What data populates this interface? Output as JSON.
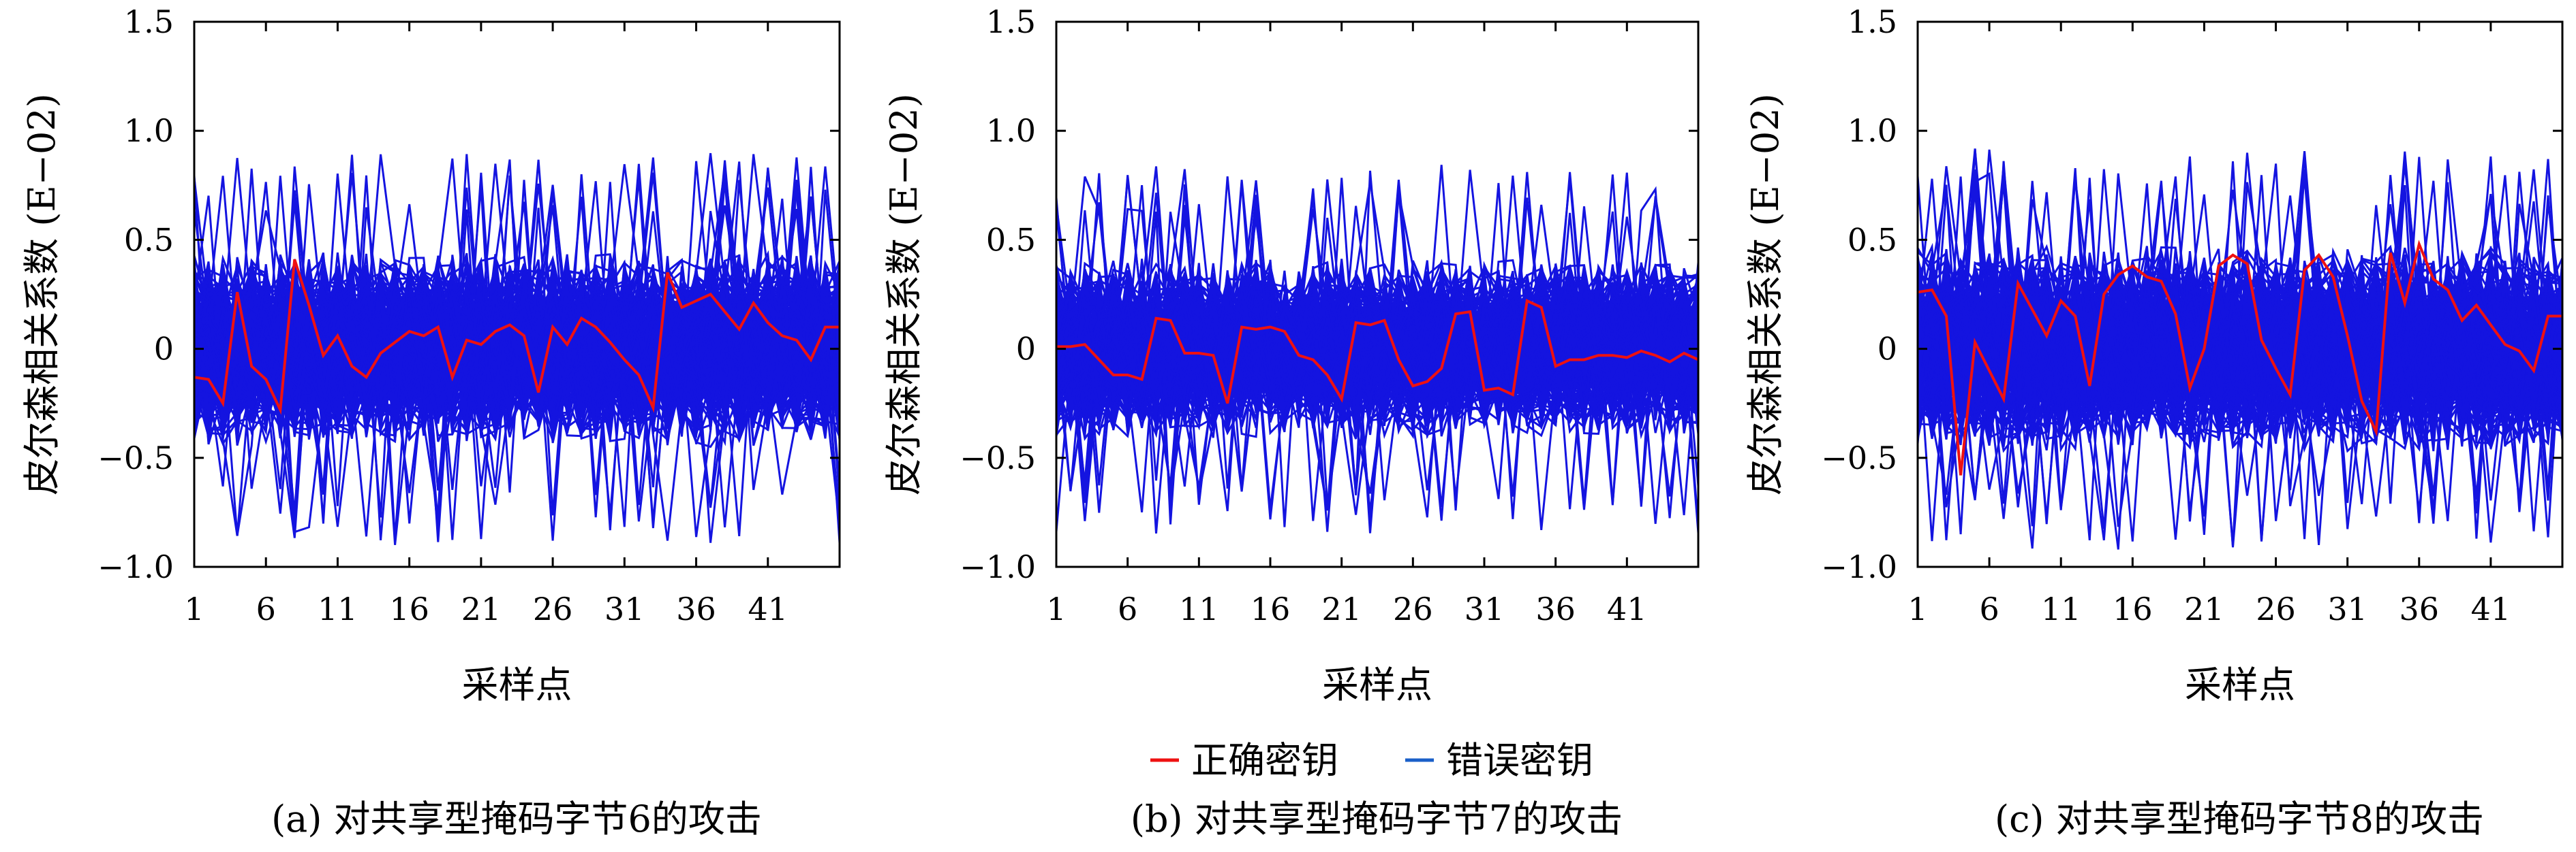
{
  "colors": {
    "correct": "#ee1111",
    "wrong": "#1414e0",
    "wrong_legend": "#1a5fc8",
    "axis": "#000000",
    "background": "#ffffff"
  },
  "legend": {
    "correct_label": "正确密钥",
    "wrong_label": "错误密钥",
    "placement": "bottom-center"
  },
  "chart_data": [
    {
      "type": "line",
      "caption": "(a) 对共享型掩码字节6的攻击",
      "xlabel": "采样点",
      "ylabel": "皮尔森相关系数 (E−02)",
      "xlim": [
        1,
        46
      ],
      "ylim": [
        -1.0,
        1.5
      ],
      "xticks": [
        "1",
        "6",
        "11",
        "16",
        "21",
        "26",
        "31",
        "36",
        "41"
      ],
      "yticks": [
        "−1.0",
        "−0.5",
        "0",
        "0.5",
        "1.0",
        "1.5"
      ],
      "grid": false,
      "wrong_key_band": {
        "typical_amplitude": 0.45,
        "peak_amplitude": 0.9,
        "count": 255
      },
      "series": [
        {
          "name": "正确密钥",
          "x": [
            1,
            2,
            3,
            4,
            5,
            6,
            7,
            8,
            9,
            10,
            11,
            12,
            13,
            14,
            15,
            16,
            17,
            18,
            19,
            20,
            21,
            22,
            23,
            24,
            25,
            26,
            27,
            28,
            29,
            30,
            31,
            32,
            33,
            34,
            35,
            36,
            37,
            38,
            39,
            40,
            41,
            42,
            43,
            44,
            45,
            46
          ],
          "values": [
            -0.13,
            -0.14,
            -0.25,
            0.26,
            -0.08,
            -0.14,
            -0.28,
            0.41,
            0.2,
            -0.03,
            0.06,
            -0.08,
            -0.13,
            -0.02,
            0.03,
            0.08,
            0.06,
            0.1,
            -0.13,
            0.04,
            0.02,
            0.08,
            0.11,
            0.06,
            -0.2,
            0.1,
            0.02,
            0.14,
            0.1,
            0.03,
            -0.05,
            -0.12,
            -0.27,
            0.35,
            0.19,
            0.22,
            0.25,
            0.17,
            0.09,
            0.21,
            0.12,
            0.06,
            0.04,
            -0.05,
            0.1,
            0.1
          ]
        }
      ]
    },
    {
      "type": "line",
      "caption": "(b) 对共享型掩码字节7的攻击",
      "xlabel": "采样点",
      "ylabel": "皮尔森相关系数 (E−02)",
      "xlim": [
        1,
        46
      ],
      "ylim": [
        -1.0,
        1.5
      ],
      "xticks": [
        "1",
        "6",
        "11",
        "16",
        "21",
        "26",
        "31",
        "36",
        "41"
      ],
      "yticks": [
        "−1.0",
        "−0.5",
        "0",
        "0.5",
        "1.0",
        "1.5"
      ],
      "grid": false,
      "wrong_key_band": {
        "typical_amplitude": 0.42,
        "peak_amplitude": 0.85,
        "count": 255
      },
      "series": [
        {
          "name": "正确密钥",
          "x": [
            1,
            2,
            3,
            4,
            5,
            6,
            7,
            8,
            9,
            10,
            11,
            12,
            13,
            14,
            15,
            16,
            17,
            18,
            19,
            20,
            21,
            22,
            23,
            24,
            25,
            26,
            27,
            28,
            29,
            30,
            31,
            32,
            33,
            34,
            35,
            36,
            37,
            38,
            39,
            40,
            41,
            42,
            43,
            44,
            45,
            46
          ],
          "values": [
            0.01,
            0.01,
            0.02,
            -0.05,
            -0.12,
            -0.12,
            -0.14,
            0.14,
            0.13,
            -0.02,
            -0.02,
            -0.03,
            -0.25,
            0.1,
            0.09,
            0.1,
            0.08,
            -0.03,
            -0.05,
            -0.12,
            -0.23,
            0.12,
            0.11,
            0.13,
            -0.05,
            -0.17,
            -0.15,
            -0.09,
            0.16,
            0.17,
            -0.19,
            -0.18,
            -0.21,
            0.22,
            0.19,
            -0.08,
            -0.05,
            -0.05,
            -0.03,
            -0.03,
            -0.04,
            -0.01,
            -0.03,
            -0.06,
            -0.02,
            -0.05
          ]
        }
      ]
    },
    {
      "type": "line",
      "caption": "(c) 对共享型掩码字节8的攻击",
      "xlabel": "采样点",
      "ylabel": "皮尔森相关系数 (E−02)",
      "xlim": [
        1,
        46
      ],
      "ylim": [
        -1.0,
        1.5
      ],
      "xticks": [
        "1",
        "6",
        "11",
        "16",
        "21",
        "26",
        "31",
        "36",
        "41"
      ],
      "yticks": [
        "−1.0",
        "−0.5",
        "0",
        "0.5",
        "1.0",
        "1.5"
      ],
      "grid": false,
      "wrong_key_band": {
        "typical_amplitude": 0.48,
        "peak_amplitude": 0.92,
        "count": 255
      },
      "series": [
        {
          "name": "正确密钥",
          "x": [
            1,
            2,
            3,
            4,
            5,
            6,
            7,
            8,
            9,
            10,
            11,
            12,
            13,
            14,
            15,
            16,
            17,
            18,
            19,
            20,
            21,
            22,
            23,
            24,
            25,
            26,
            27,
            28,
            29,
            30,
            31,
            32,
            33,
            34,
            35,
            36,
            37,
            38,
            39,
            40,
            41,
            42,
            43,
            44,
            45,
            46
          ],
          "values": [
            0.26,
            0.27,
            0.15,
            -0.58,
            0.03,
            -0.1,
            -0.23,
            0.3,
            0.18,
            0.06,
            0.22,
            0.15,
            -0.17,
            0.25,
            0.34,
            0.38,
            0.33,
            0.31,
            0.16,
            -0.18,
            0.0,
            0.38,
            0.43,
            0.39,
            0.04,
            -0.09,
            -0.21,
            0.36,
            0.43,
            0.33,
            0.06,
            -0.24,
            -0.38,
            0.44,
            0.21,
            0.48,
            0.32,
            0.27,
            0.13,
            0.2,
            0.11,
            0.02,
            -0.01,
            -0.1,
            0.15,
            0.15
          ]
        }
      ]
    }
  ]
}
